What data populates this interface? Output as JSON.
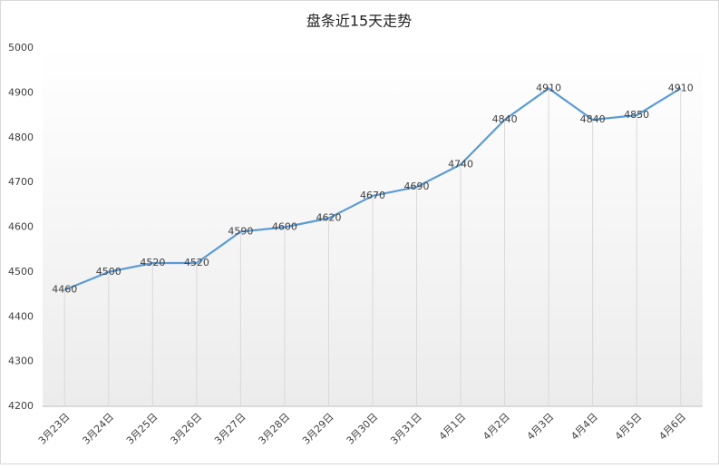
{
  "chart_data": {
    "type": "line",
    "title": "盘条近15天走势",
    "categories": [
      "3月23日",
      "3月24日",
      "3月25日",
      "3月26日",
      "3月27日",
      "3月28日",
      "3月29日",
      "3月30日",
      "3月31日",
      "4月1日",
      "4月2日",
      "4月3日",
      "4月4日",
      "4月5日",
      "4月6日"
    ],
    "values": [
      4460,
      4500,
      4520,
      4520,
      4590,
      4600,
      4620,
      4670,
      4690,
      4740,
      4840,
      4910,
      4840,
      4850,
      4910
    ],
    "color": "#5b9bd5",
    "ylim": [
      4200,
      5000
    ],
    "yticks": [
      4200,
      4300,
      4400,
      4500,
      4600,
      4700,
      4800,
      4900,
      5000
    ],
    "grid": false,
    "drop_lines": true,
    "data_labels": true
  }
}
